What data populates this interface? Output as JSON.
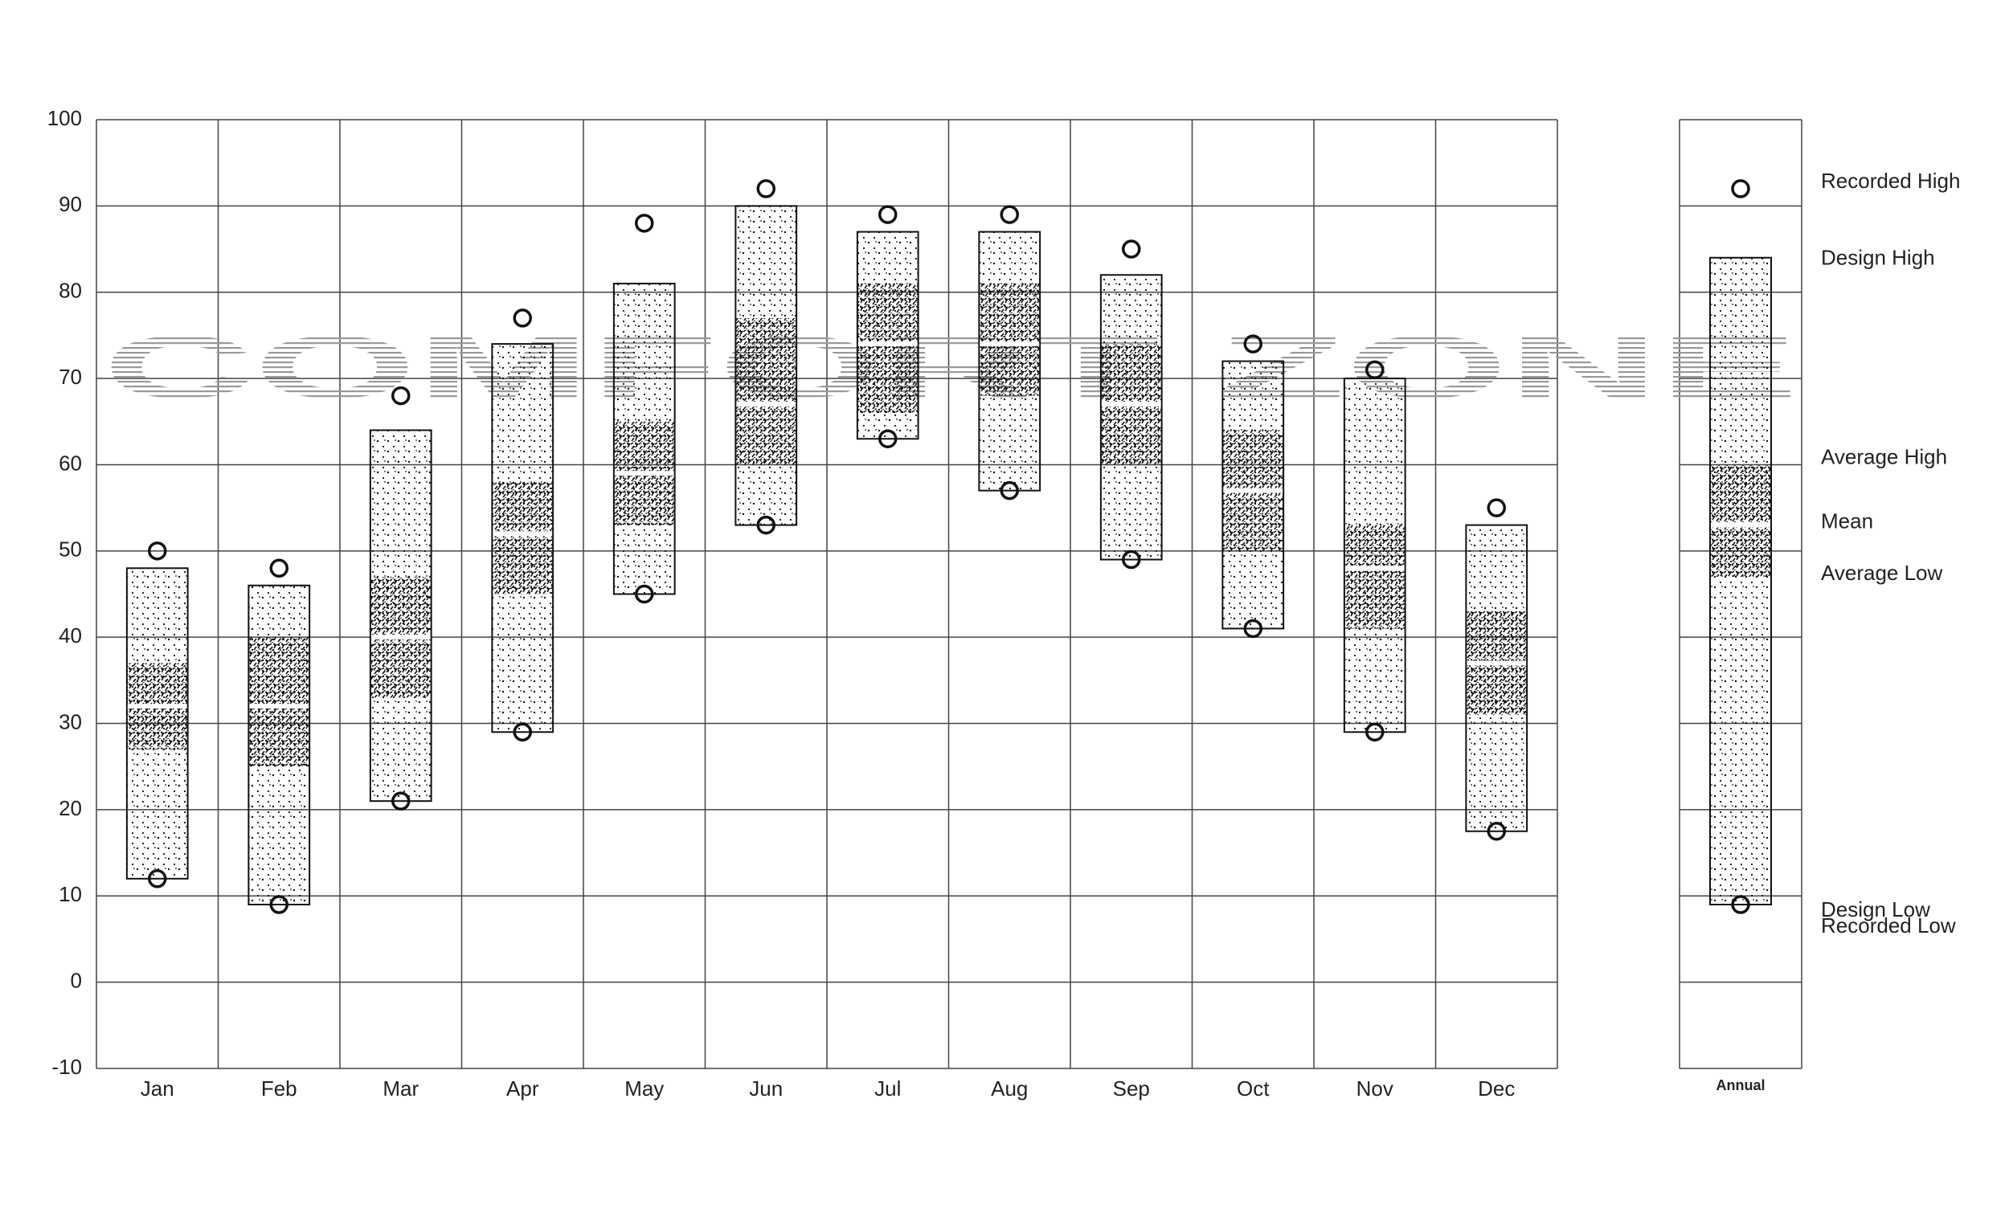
{
  "chart_data": {
    "type": "range",
    "watermark": "COMFORT ZONE",
    "categories": [
      "Jan",
      "Feb",
      "Mar",
      "Apr",
      "May",
      "Jun",
      "Jul",
      "Aug",
      "Sep",
      "Oct",
      "Nov",
      "Dec",
      "Annual"
    ],
    "series": [
      {
        "name": "Recorded High",
        "values": [
          50,
          48,
          68,
          77,
          88,
          92,
          89,
          89,
          85,
          74,
          71,
          55,
          92
        ]
      },
      {
        "name": "Design High",
        "values": [
          48,
          46,
          64,
          74,
          81,
          90,
          87,
          87,
          82,
          72,
          70,
          53,
          84
        ]
      },
      {
        "name": "Average High",
        "values": [
          37,
          40,
          47,
          58,
          65,
          77,
          81,
          81,
          74,
          64,
          53,
          43,
          60
        ]
      },
      {
        "name": "Mean",
        "values": [
          32,
          32,
          40,
          52,
          59,
          67,
          74,
          74,
          67,
          57,
          48,
          37,
          53
        ]
      },
      {
        "name": "Average Low",
        "values": [
          27,
          25,
          33,
          45,
          53,
          60,
          66,
          68,
          60,
          50,
          41,
          31,
          47
        ]
      },
      {
        "name": "Design Low",
        "values": [
          12,
          9,
          21,
          29,
          45,
          53,
          63,
          57,
          49,
          41,
          29,
          17.5,
          9
        ]
      },
      {
        "name": "Recorded Low",
        "values": [
          12,
          9,
          21,
          29,
          45,
          53,
          63,
          57,
          49,
          41,
          29,
          17.5,
          9
        ]
      }
    ],
    "ylim": [
      -10,
      100
    ],
    "yticks": [
      -10,
      0,
      10,
      20,
      30,
      40,
      50,
      60,
      70,
      80,
      90,
      100
    ],
    "grid": true
  }
}
